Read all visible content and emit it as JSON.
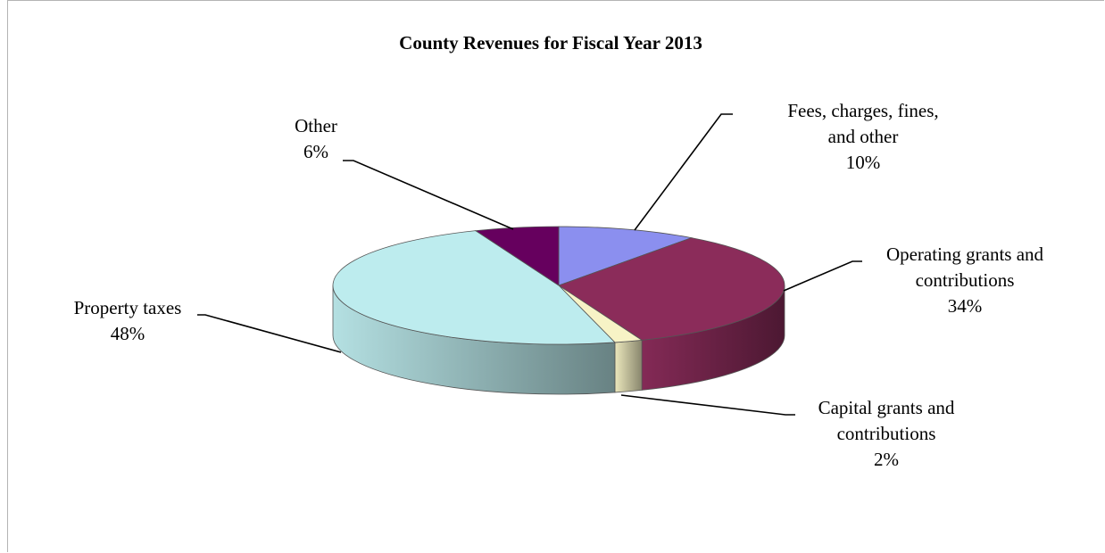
{
  "chart_data": {
    "type": "pie",
    "title": "County Revenues for Fiscal Year 2013",
    "slices": [
      {
        "name": "Fees, charges, fines, and other",
        "label_lines": [
          "Fees, charges, fines,",
          "and other"
        ],
        "percent_label": "10%",
        "value": 10,
        "color": "#8b8fef"
      },
      {
        "name": "Operating grants and contributions",
        "label_lines": [
          "Operating grants and",
          "contributions"
        ],
        "percent_label": "34%",
        "value": 34,
        "color": "#8b2c5a"
      },
      {
        "name": "Capital grants and contributions",
        "label_lines": [
          "Capital grants and",
          "contributions"
        ],
        "percent_label": "2%",
        "value": 2,
        "color": "#f7f3c6"
      },
      {
        "name": "Property taxes",
        "label_lines": [
          "Property taxes"
        ],
        "percent_label": "48%",
        "value": 48,
        "color": "#bdecee"
      },
      {
        "name": "Other",
        "label_lines": [
          "Other"
        ],
        "percent_label": "6%",
        "value": 6,
        "color": "#66005e"
      }
    ],
    "legend": "none",
    "style": "3d"
  }
}
